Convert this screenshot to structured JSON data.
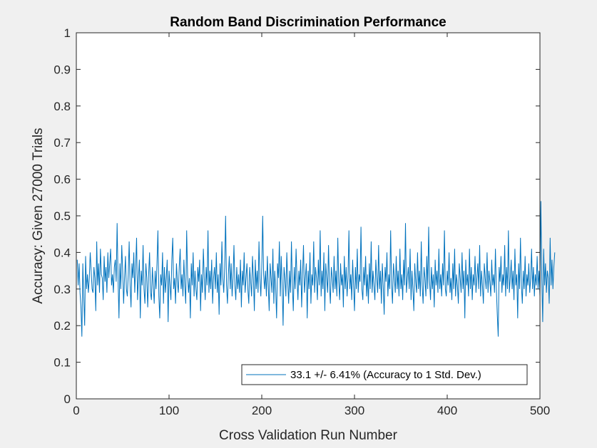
{
  "chart_data": {
    "type": "line",
    "title": "Random Band Discrimination Performance",
    "xlabel": "Cross Validation Run Number",
    "ylabel": "Accuracy: Given 27000 Trials",
    "xlim": [
      0,
      500
    ],
    "ylim": [
      0,
      1
    ],
    "xticks": [
      0,
      100,
      200,
      300,
      400,
      500
    ],
    "xtick_labels": [
      "0",
      "100",
      "200",
      "300",
      "400",
      "500"
    ],
    "yticks": [
      0,
      0.1,
      0.2,
      0.3,
      0.4,
      0.5,
      0.6,
      0.7,
      0.8,
      0.9,
      1
    ],
    "ytick_labels": [
      "0",
      "0.1",
      "0.2",
      "0.3",
      "0.4",
      "0.5",
      "0.6",
      "0.7",
      "0.8",
      "0.9",
      "1"
    ],
    "grid": false,
    "legend_position": "bottom-right",
    "series": [
      {
        "name": "33.1 +/- 6.41% (Accuracy to 1 Std. Dev.)",
        "color": "#0072bd",
        "x_start": 1,
        "x_step": 1,
        "y": [
          0.38,
          0.31,
          0.37,
          0.29,
          0.25,
          0.17,
          0.37,
          0.28,
          0.2,
          0.39,
          0.3,
          0.34,
          0.29,
          0.33,
          0.4,
          0.35,
          0.3,
          0.29,
          0.36,
          0.33,
          0.24,
          0.43,
          0.31,
          0.37,
          0.29,
          0.41,
          0.34,
          0.33,
          0.27,
          0.39,
          0.32,
          0.36,
          0.29,
          0.4,
          0.33,
          0.37,
          0.41,
          0.31,
          0.34,
          0.29,
          0.36,
          0.38,
          0.32,
          0.48,
          0.33,
          0.22,
          0.37,
          0.3,
          0.42,
          0.35,
          0.26,
          0.33,
          0.39,
          0.3,
          0.28,
          0.34,
          0.43,
          0.31,
          0.25,
          0.37,
          0.33,
          0.4,
          0.29,
          0.36,
          0.44,
          0.27,
          0.33,
          0.38,
          0.22,
          0.35,
          0.31,
          0.42,
          0.3,
          0.26,
          0.37,
          0.33,
          0.25,
          0.34,
          0.4,
          0.29,
          0.27,
          0.36,
          0.31,
          0.26,
          0.35,
          0.3,
          0.37,
          0.46,
          0.28,
          0.22,
          0.34,
          0.31,
          0.4,
          0.26,
          0.36,
          0.29,
          0.33,
          0.38,
          0.21,
          0.35,
          0.31,
          0.27,
          0.38,
          0.44,
          0.3,
          0.33,
          0.26,
          0.37,
          0.32,
          0.29,
          0.36,
          0.41,
          0.3,
          0.34,
          0.28,
          0.38,
          0.31,
          0.26,
          0.46,
          0.34,
          0.29,
          0.33,
          0.22,
          0.37,
          0.31,
          0.4,
          0.28,
          0.35,
          0.3,
          0.27,
          0.36,
          0.32,
          0.38,
          0.24,
          0.34,
          0.29,
          0.41,
          0.33,
          0.27,
          0.36,
          0.31,
          0.46,
          0.29,
          0.35,
          0.3,
          0.38,
          0.26,
          0.33,
          0.36,
          0.3,
          0.4,
          0.29,
          0.34,
          0.23,
          0.37,
          0.31,
          0.43,
          0.33,
          0.29,
          0.36,
          0.5,
          0.31,
          0.26,
          0.34,
          0.39,
          0.3,
          0.37,
          0.28,
          0.33,
          0.42,
          0.31,
          0.27,
          0.36,
          0.3,
          0.34,
          0.29,
          0.38,
          0.25,
          0.35,
          0.31,
          0.4,
          0.29,
          0.33,
          0.37,
          0.3,
          0.26,
          0.36,
          0.32,
          0.28,
          0.39,
          0.33,
          0.24,
          0.38,
          0.3,
          0.35,
          0.29,
          0.43,
          0.33,
          0.28,
          0.36,
          0.5,
          0.34,
          0.3,
          0.35,
          0.28,
          0.39,
          0.31,
          0.24,
          0.37,
          0.33,
          0.29,
          0.41,
          0.26,
          0.35,
          0.3,
          0.22,
          0.37,
          0.33,
          0.43,
          0.28,
          0.39,
          0.31,
          0.2,
          0.36,
          0.33,
          0.28,
          0.4,
          0.32,
          0.26,
          0.35,
          0.29,
          0.43,
          0.31,
          0.24,
          0.36,
          0.3,
          0.41,
          0.33,
          0.27,
          0.35,
          0.31,
          0.38,
          0.25,
          0.34,
          0.42,
          0.29,
          0.33,
          0.37,
          0.22,
          0.35,
          0.3,
          0.4,
          0.26,
          0.34,
          0.31,
          0.43,
          0.29,
          0.36,
          0.33,
          0.27,
          0.38,
          0.31,
          0.46,
          0.28,
          0.35,
          0.3,
          0.4,
          0.24,
          0.37,
          0.33,
          0.29,
          0.42,
          0.31,
          0.26,
          0.36,
          0.33,
          0.29,
          0.39,
          0.3,
          0.35,
          0.28,
          0.44,
          0.32,
          0.27,
          0.37,
          0.31,
          0.34,
          0.25,
          0.39,
          0.3,
          0.36,
          0.28,
          0.33,
          0.46,
          0.3,
          0.34,
          0.27,
          0.38,
          0.31,
          0.24,
          0.36,
          0.3,
          0.41,
          0.29,
          0.34,
          0.32,
          0.47,
          0.3,
          0.27,
          0.36,
          0.31,
          0.39,
          0.28,
          0.34,
          0.26,
          0.37,
          0.3,
          0.43,
          0.29,
          0.35,
          0.31,
          0.27,
          0.38,
          0.33,
          0.29,
          0.42,
          0.3,
          0.35,
          0.26,
          0.37,
          0.31,
          0.23,
          0.36,
          0.32,
          0.4,
          0.28,
          0.34,
          0.3,
          0.46,
          0.31,
          0.26,
          0.37,
          0.33,
          0.29,
          0.39,
          0.3,
          0.35,
          0.28,
          0.41,
          0.3,
          0.34,
          0.27,
          0.38,
          0.31,
          0.48,
          0.29,
          0.33,
          0.36,
          0.3,
          0.41,
          0.27,
          0.35,
          0.3,
          0.24,
          0.37,
          0.32,
          0.29,
          0.4,
          0.3,
          0.35,
          0.28,
          0.43,
          0.31,
          0.26,
          0.36,
          0.33,
          0.28,
          0.39,
          0.3,
          0.47,
          0.32,
          0.27,
          0.36,
          0.3,
          0.34,
          0.25,
          0.38,
          0.31,
          0.35,
          0.29,
          0.41,
          0.3,
          0.34,
          0.28,
          0.37,
          0.31,
          0.46,
          0.3,
          0.28,
          0.35,
          0.31,
          0.4,
          0.29,
          0.33,
          0.27,
          0.37,
          0.3,
          0.41,
          0.28,
          0.34,
          0.31,
          0.26,
          0.37,
          0.33,
          0.29,
          0.4,
          0.3,
          0.35,
          0.22,
          0.38,
          0.31,
          0.34,
          0.28,
          0.41,
          0.3,
          0.36,
          0.27,
          0.34,
          0.31,
          0.39,
          0.29,
          0.33,
          0.37,
          0.3,
          0.42,
          0.28,
          0.35,
          0.31,
          0.26,
          0.37,
          0.33,
          0.3,
          0.4,
          0.29,
          0.35,
          0.32,
          0.28,
          0.38,
          0.31,
          0.34,
          0.29,
          0.41,
          0.3,
          0.23,
          0.17,
          0.36,
          0.32,
          0.39,
          0.29,
          0.34,
          0.31,
          0.42,
          0.28,
          0.36,
          0.3,
          0.46,
          0.29,
          0.33,
          0.38,
          0.3,
          0.35,
          0.27,
          0.41,
          0.31,
          0.34,
          0.22,
          0.37,
          0.3,
          0.44,
          0.31,
          0.26,
          0.35,
          0.3,
          0.39,
          0.28,
          0.34,
          0.31,
          0.37,
          0.29,
          0.33,
          0.41,
          0.3,
          0.36,
          0.28,
          0.34,
          0.31,
          0.39,
          0.3,
          0.35,
          0.28,
          0.54,
          0.33,
          0.21,
          0.41,
          0.31,
          0.37,
          0.29,
          0.35,
          0.33,
          0.26,
          0.44,
          0.31,
          0.38,
          0.3,
          0.36,
          0.4
        ]
      }
    ]
  }
}
